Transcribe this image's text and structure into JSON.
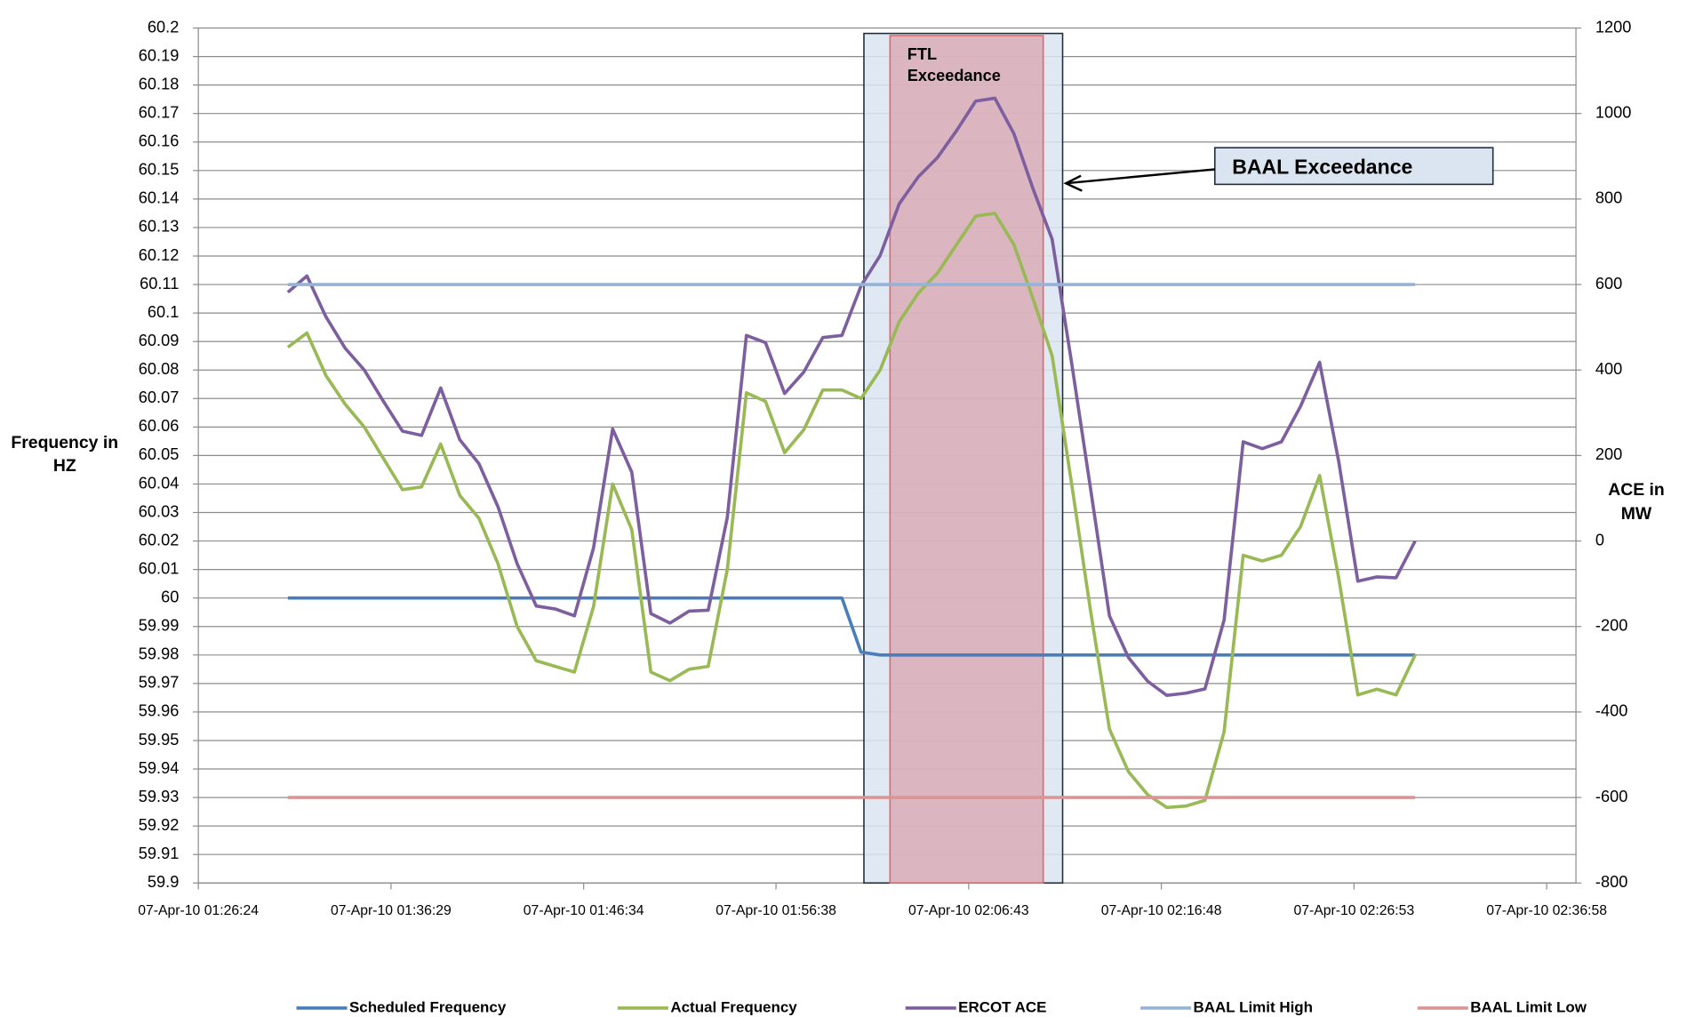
{
  "chart_data": {
    "type": "line",
    "x": [
      "2010-04-07T01:31:05",
      "2010-04-07T01:32:05",
      "2010-04-07T01:33:05",
      "2010-04-07T01:34:05",
      "2010-04-07T01:35:05",
      "2010-04-07T01:36:05",
      "2010-04-07T01:37:05",
      "2010-04-07T01:38:05",
      "2010-04-07T01:39:05",
      "2010-04-07T01:40:05",
      "2010-04-07T01:41:05",
      "2010-04-07T01:42:05",
      "2010-04-07T01:43:05",
      "2010-04-07T01:44:05",
      "2010-04-07T01:45:05",
      "2010-04-07T01:46:05",
      "2010-04-07T01:47:05",
      "2010-04-07T01:48:05",
      "2010-04-07T01:49:05",
      "2010-04-07T01:50:05",
      "2010-04-07T01:51:05",
      "2010-04-07T01:52:05",
      "2010-04-07T01:53:05",
      "2010-04-07T01:54:05",
      "2010-04-07T01:55:05",
      "2010-04-07T01:56:05",
      "2010-04-07T01:57:05",
      "2010-04-07T01:58:05",
      "2010-04-07T01:59:05",
      "2010-04-07T02:00:05",
      "2010-04-07T02:01:05",
      "2010-04-07T02:02:05",
      "2010-04-07T02:03:05",
      "2010-04-07T02:04:05",
      "2010-04-07T02:05:05",
      "2010-04-07T02:06:05",
      "2010-04-07T02:07:05",
      "2010-04-07T02:08:05",
      "2010-04-07T02:09:05",
      "2010-04-07T02:10:05",
      "2010-04-07T02:11:05",
      "2010-04-07T02:12:05",
      "2010-04-07T02:13:05",
      "2010-04-07T02:14:05",
      "2010-04-07T02:15:05",
      "2010-04-07T02:16:05",
      "2010-04-07T02:17:05",
      "2010-04-07T02:18:05",
      "2010-04-07T02:19:05",
      "2010-04-07T02:20:05",
      "2010-04-07T02:21:05",
      "2010-04-07T02:22:05",
      "2010-04-07T02:23:05",
      "2010-04-07T02:24:05",
      "2010-04-07T02:25:05",
      "2010-04-07T02:26:05",
      "2010-04-07T02:27:05",
      "2010-04-07T02:28:05",
      "2010-04-07T02:29:05",
      "2010-04-07T02:30:05"
    ],
    "xlim": [
      "2010-04-07T01:26:24",
      "2010-04-07T02:38:30"
    ],
    "xticks": [
      {
        "value": "2010-04-07T01:26:24",
        "label": "07-Apr-10 01:26:24"
      },
      {
        "value": "2010-04-07T01:36:29",
        "label": "07-Apr-10 01:36:29"
      },
      {
        "value": "2010-04-07T01:46:34",
        "label": "07-Apr-10 01:46:34"
      },
      {
        "value": "2010-04-07T01:56:38",
        "label": "07-Apr-10 01:56:38"
      },
      {
        "value": "2010-04-07T02:06:43",
        "label": "07-Apr-10 02:06:43"
      },
      {
        "value": "2010-04-07T02:16:48",
        "label": "07-Apr-10 02:16:48"
      },
      {
        "value": "2010-04-07T02:26:53",
        "label": "07-Apr-10 02:26:53"
      },
      {
        "value": "2010-04-07T02:36:58",
        "label": "07-Apr-10 02:36:58"
      }
    ],
    "ylim": [
      59.9,
      60.2
    ],
    "yticks": [
      59.9,
      59.91,
      59.92,
      59.93,
      59.94,
      59.95,
      59.96,
      59.97,
      59.98,
      59.99,
      60,
      60.01,
      60.02,
      60.03,
      60.04,
      60.05,
      60.06,
      60.07,
      60.08,
      60.09,
      60.1,
      60.11,
      60.12,
      60.13,
      60.14,
      60.15,
      60.16,
      60.17,
      60.18,
      60.19,
      60.2
    ],
    "y2lim": [
      -800,
      1200
    ],
    "y2ticks": [
      -800,
      -600,
      -400,
      -200,
      0,
      200,
      400,
      600,
      800,
      1000,
      1200
    ],
    "y_label": "Frequency in HZ",
    "y2_label": "ACE in MW",
    "grid": true,
    "legend": "bottom",
    "series": [
      {
        "name": "Scheduled  Frequency",
        "color": "#4a7ebb",
        "values": [
          60,
          60,
          60,
          60,
          60,
          60,
          60,
          60,
          60,
          60,
          60,
          60,
          60,
          60,
          60,
          60,
          60,
          60,
          60,
          60,
          60,
          60,
          60,
          60,
          60,
          60,
          60,
          60,
          60,
          60,
          59.981,
          59.98,
          59.98,
          59.98,
          59.98,
          59.98,
          59.98,
          59.98,
          59.98,
          59.98,
          59.98,
          59.98,
          59.98,
          59.98,
          59.98,
          59.98,
          59.98,
          59.98,
          59.98,
          59.98,
          59.98,
          59.98,
          59.98,
          59.98,
          59.98,
          59.98,
          59.98,
          59.98,
          59.98,
          59.98
        ]
      },
      {
        "name": "Actual Frequency",
        "color": "#98b954",
        "values": [
          60.088,
          60.093,
          60.078,
          60.068,
          60.06,
          60.049,
          60.038,
          60.039,
          60.054,
          60.036,
          60.028,
          60.012,
          59.99,
          59.978,
          59.976,
          59.974,
          59.997,
          60.04,
          60.024,
          59.974,
          59.971,
          59.975,
          59.976,
          60.01,
          60.072,
          60.069,
          60.051,
          60.059,
          60.073,
          60.073,
          60.07,
          60.08,
          60.097,
          60.107,
          60.114,
          60.124,
          60.134,
          60.135,
          60.124,
          60.105,
          60.085,
          60.041,
          59.996,
          59.954,
          59.939,
          59.931,
          59.9265,
          59.927,
          59.929,
          59.953,
          60.015,
          60.013,
          60.015,
          60.025,
          60.043,
          60.007,
          59.966,
          59.968,
          59.966,
          59.98
        ]
      },
      {
        "name": "ERCOT ACE",
        "color": "#7d5fa0",
        "axis": "y2",
        "values": [
          582,
          620,
          524,
          451,
          400,
          327,
          257,
          247,
          358,
          237,
          181,
          80,
          -53,
          -152,
          -159,
          -175,
          -16,
          262,
          161,
          -170,
          -192,
          -164,
          -162,
          55,
          481,
          464,
          345,
          395,
          476,
          481,
          597,
          668,
          789,
          852,
          897,
          960,
          1029,
          1036,
          953,
          824,
          706,
          423,
          126,
          -175,
          -273,
          -328,
          -361,
          -356,
          -346,
          -185,
          232,
          216,
          232,
          315,
          418,
          186,
          -94,
          -84,
          -86,
          0
        ]
      },
      {
        "name": "BAAL Limit High",
        "color": "#95b3d7",
        "values": [
          60.11,
          60.11,
          60.11,
          60.11,
          60.11,
          60.11,
          60.11,
          60.11,
          60.11,
          60.11,
          60.11,
          60.11,
          60.11,
          60.11,
          60.11,
          60.11,
          60.11,
          60.11,
          60.11,
          60.11,
          60.11,
          60.11,
          60.11,
          60.11,
          60.11,
          60.11,
          60.11,
          60.11,
          60.11,
          60.11,
          60.11,
          60.11,
          60.11,
          60.11,
          60.11,
          60.11,
          60.11,
          60.11,
          60.11,
          60.11,
          60.11,
          60.11,
          60.11,
          60.11,
          60.11,
          60.11,
          60.11,
          60.11,
          60.11,
          60.11,
          60.11,
          60.11,
          60.11,
          60.11,
          60.11,
          60.11,
          60.11,
          60.11,
          60.11,
          60.11
        ]
      },
      {
        "name": "BAAL Limit Low",
        "color": "#d99694",
        "values": [
          59.93,
          59.93,
          59.93,
          59.93,
          59.93,
          59.93,
          59.93,
          59.93,
          59.93,
          59.93,
          59.93,
          59.93,
          59.93,
          59.93,
          59.93,
          59.93,
          59.93,
          59.93,
          59.93,
          59.93,
          59.93,
          59.93,
          59.93,
          59.93,
          59.93,
          59.93,
          59.93,
          59.93,
          59.93,
          59.93,
          59.93,
          59.93,
          59.93,
          59.93,
          59.93,
          59.93,
          59.93,
          59.93,
          59.93,
          59.93,
          59.93,
          59.93,
          59.93,
          59.93,
          59.93,
          59.93,
          59.93,
          59.93,
          59.93,
          59.93,
          59.93,
          59.93,
          59.93,
          59.93,
          59.93,
          59.93,
          59.93,
          59.93,
          59.93,
          59.93
        ]
      }
    ],
    "annotations": [
      {
        "label": "BAAL Exceedance",
        "x": [
          "2010-04-07T02:01:14",
          "2010-04-07T02:11:38"
        ],
        "color": "#dbe5f1"
      },
      {
        "label": "FTL Exceedance",
        "x": [
          "2010-04-07T02:02:36",
          "2010-04-07T02:10:37"
        ],
        "color": "#d9a3ad"
      }
    ]
  }
}
